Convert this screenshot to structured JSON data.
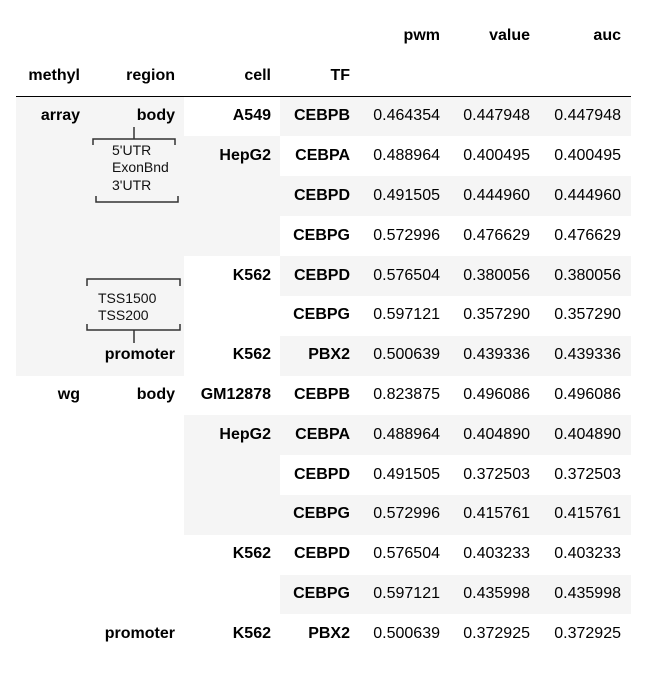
{
  "value_columns": [
    "pwm",
    "value",
    "auc"
  ],
  "index_columns": [
    "methyl",
    "region",
    "cell",
    "TF"
  ],
  "rows": [
    {
      "methyl": "array",
      "region": "body",
      "cell": "A549",
      "tf": "CEBPB",
      "pwm": "0.464354",
      "value": "0.447948",
      "auc": "0.447948"
    },
    {
      "methyl": "",
      "region": "",
      "cell": "HepG2",
      "tf": "CEBPA",
      "pwm": "0.488964",
      "value": "0.400495",
      "auc": "0.400495"
    },
    {
      "methyl": "",
      "region": "",
      "cell": "",
      "tf": "CEBPD",
      "pwm": "0.491505",
      "value": "0.444960",
      "auc": "0.444960"
    },
    {
      "methyl": "",
      "region": "",
      "cell": "",
      "tf": "CEBPG",
      "pwm": "0.572996",
      "value": "0.476629",
      "auc": "0.476629"
    },
    {
      "methyl": "",
      "region": "",
      "cell": "K562",
      "tf": "CEBPD",
      "pwm": "0.576504",
      "value": "0.380056",
      "auc": "0.380056"
    },
    {
      "methyl": "",
      "region": "",
      "cell": "",
      "tf": "CEBPG",
      "pwm": "0.597121",
      "value": "0.357290",
      "auc": "0.357290"
    },
    {
      "methyl": "",
      "region": "promoter",
      "cell": "K562",
      "tf": "PBX2",
      "pwm": "0.500639",
      "value": "0.439336",
      "auc": "0.439336"
    },
    {
      "methyl": "wg",
      "region": "body",
      "cell": "GM12878",
      "tf": "CEBPB",
      "pwm": "0.823875",
      "value": "0.496086",
      "auc": "0.496086"
    },
    {
      "methyl": "",
      "region": "",
      "cell": "HepG2",
      "tf": "CEBPA",
      "pwm": "0.488964",
      "value": "0.404890",
      "auc": "0.404890"
    },
    {
      "methyl": "",
      "region": "",
      "cell": "",
      "tf": "CEBPD",
      "pwm": "0.491505",
      "value": "0.372503",
      "auc": "0.372503"
    },
    {
      "methyl": "",
      "region": "",
      "cell": "",
      "tf": "CEBPG",
      "pwm": "0.572996",
      "value": "0.415761",
      "auc": "0.415761"
    },
    {
      "methyl": "",
      "region": "",
      "cell": "K562",
      "tf": "CEBPD",
      "pwm": "0.576504",
      "value": "0.403233",
      "auc": "0.403233"
    },
    {
      "methyl": "",
      "region": "",
      "cell": "",
      "tf": "CEBPG",
      "pwm": "0.597121",
      "value": "0.435998",
      "auc": "0.435998"
    },
    {
      "methyl": "",
      "region": "promoter",
      "cell": "K562",
      "tf": "PBX2",
      "pwm": "0.500639",
      "value": "0.372925",
      "auc": "0.372925"
    }
  ],
  "annotations": {
    "body_regions": [
      "5'UTR",
      "ExonBnd",
      "3'UTR"
    ],
    "promoter_regions": [
      "TSS1500",
      "TSS200"
    ]
  }
}
